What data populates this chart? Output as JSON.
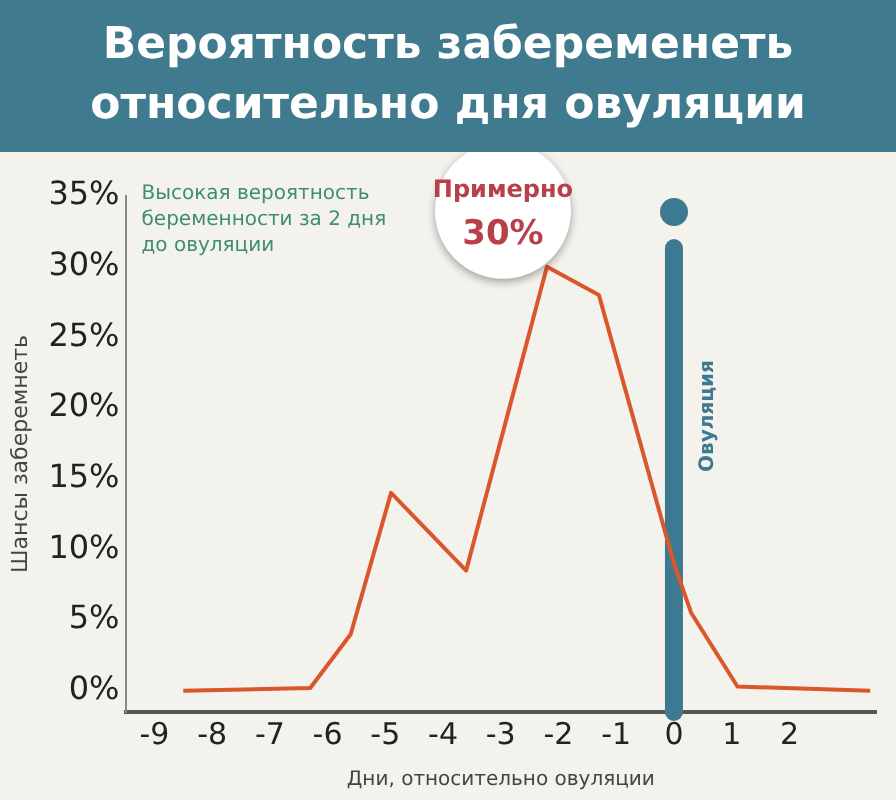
{
  "chart_data": {
    "type": "line",
    "title": "Вероятность забеременеть относительно дня овуляции",
    "xlabel": "Дни, относительно овуляции",
    "ylabel": "Шансы заберемнеть",
    "x": [
      -8.5,
      -6.3,
      -5.6,
      -4.9,
      -3.6,
      -2.2,
      -1.3,
      0,
      0.3,
      1.1,
      3.4
    ],
    "series": [
      {
        "color": "#d9572b",
        "values": [
          0,
          0.2,
          4,
          14,
          8.5,
          30,
          28,
          9,
          5.5,
          0.3,
          0
        ]
      }
    ],
    "xlim": [
      -9.5,
      3.5
    ],
    "xticks": [
      -9,
      -8,
      -7,
      -6,
      -5,
      -4,
      -3,
      -2,
      -1,
      0,
      1,
      2
    ],
    "ylim": [
      -1.5,
      35
    ],
    "yticks": [
      {
        "value": 0,
        "label": "0%"
      },
      {
        "value": 5,
        "label": "5%"
      },
      {
        "value": 10,
        "label": "10%"
      },
      {
        "value": 15,
        "label": "15%"
      },
      {
        "value": 20,
        "label": "20%"
      },
      {
        "value": 25,
        "label": "25%"
      },
      {
        "value": 30,
        "label": "30%"
      },
      {
        "value": 35,
        "label": "35%"
      }
    ],
    "ref_lines": [
      {
        "axis": "x",
        "value": 0,
        "label": "Овуляция",
        "color": "#3d7a91"
      }
    ],
    "annotations": [
      "Высокая вероятность\nбеременности за 2 дня\nдо овуляции",
      {
        "text": "Примерно\n30%",
        "x": -2.2,
        "y": 30
      }
    ],
    "grid": false,
    "legend": false,
    "marker": "none",
    "line_style": "solid"
  }
}
